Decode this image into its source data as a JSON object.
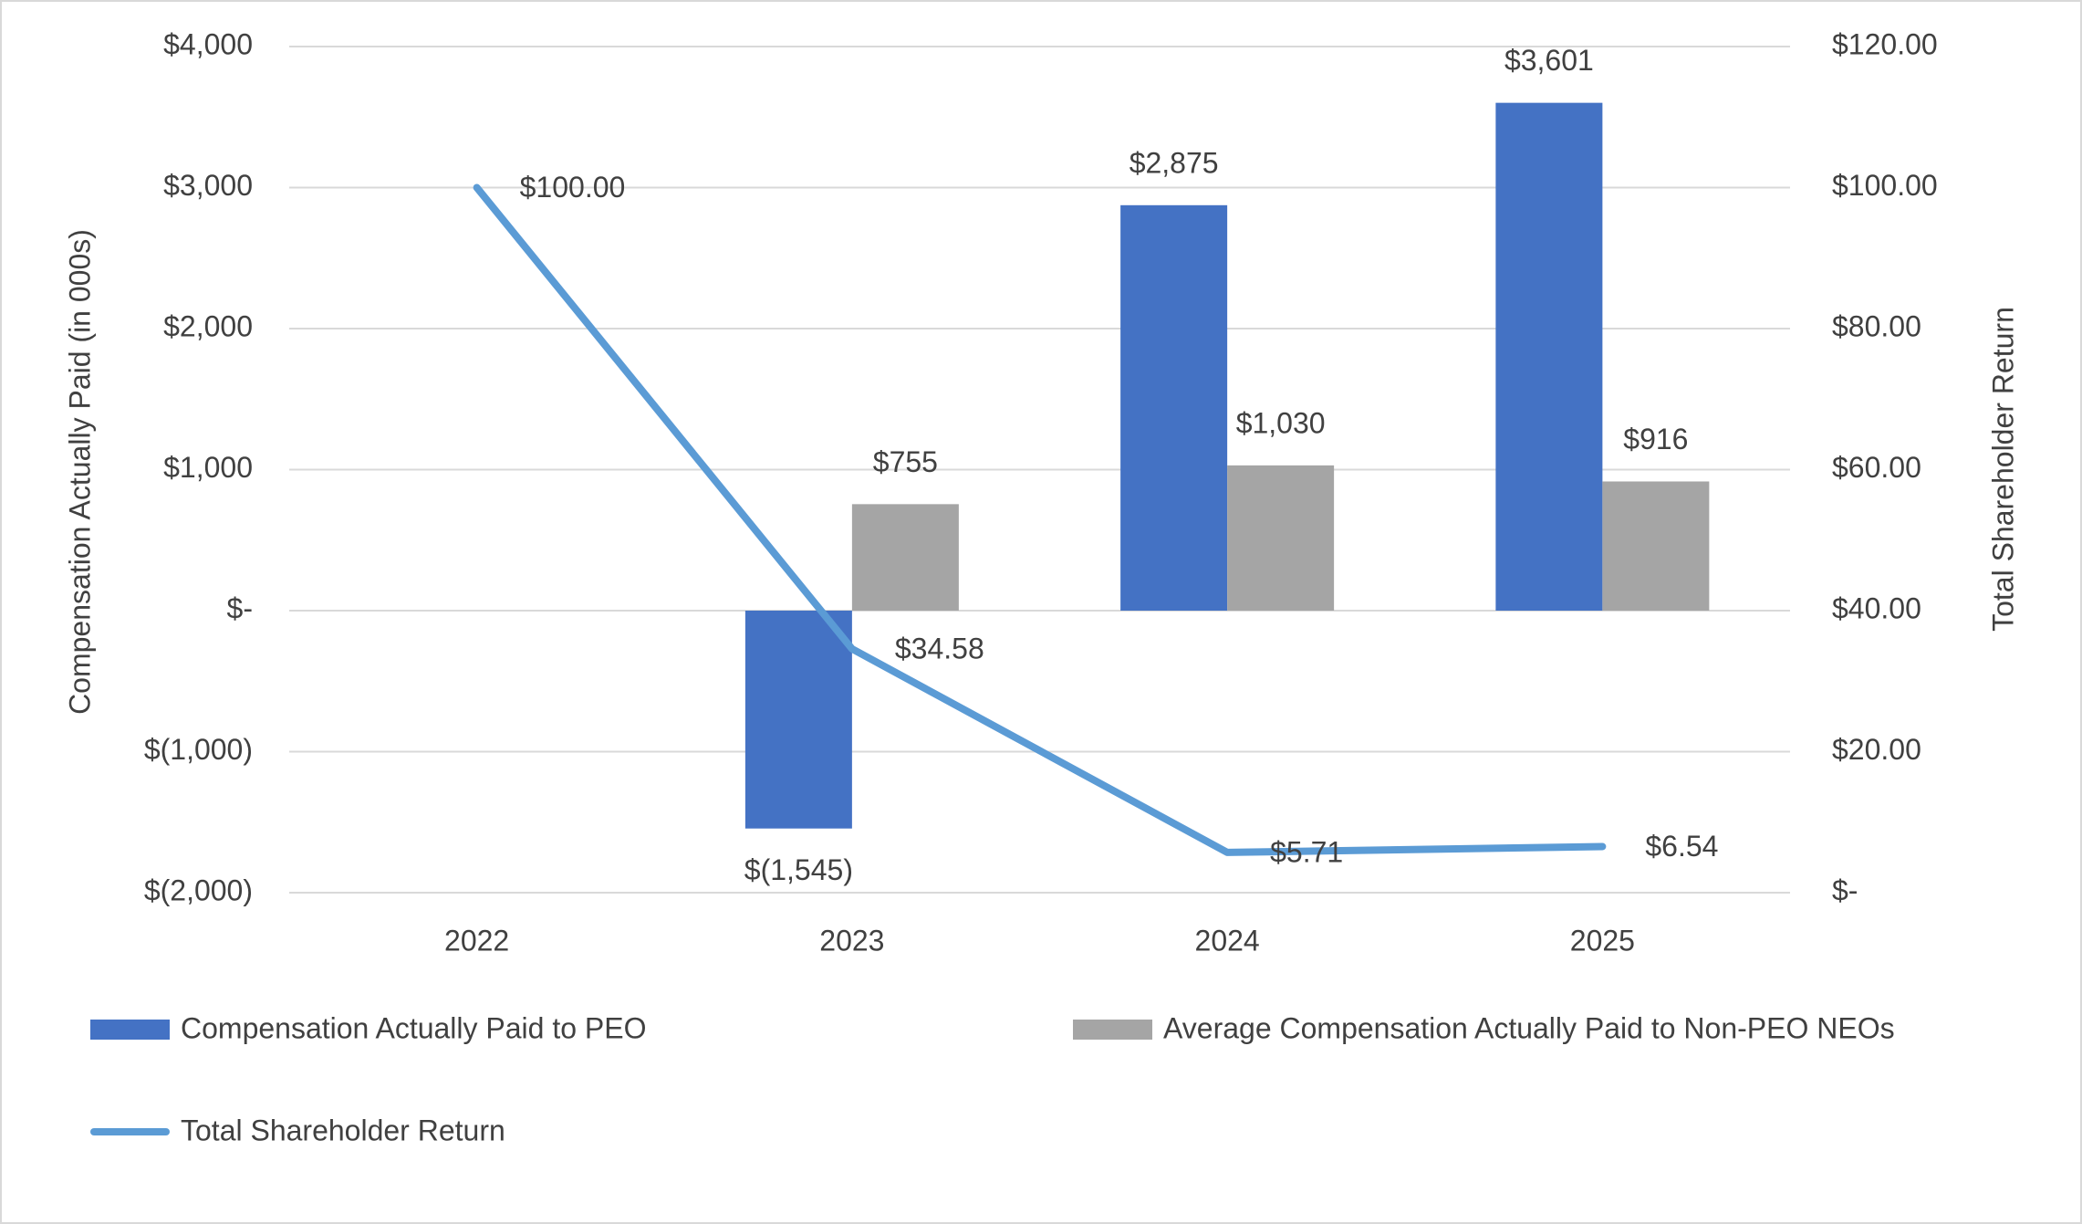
{
  "chart_data": {
    "type": "combo",
    "y_label": "Compensation Actually Paid (in 000s)",
    "y2_label": "Total Shareholder Return",
    "categories": [
      "2022",
      "2023",
      "2024",
      "2025"
    ],
    "series": [
      {
        "name": "Compensation Actually Paid to PEO",
        "type": "bar",
        "color": "#4472c4",
        "values": [
          null,
          -1545,
          2875,
          3601
        ],
        "value_labels": [
          null,
          "$(1,545)",
          "$2,875",
          "$3,601"
        ]
      },
      {
        "name": "Average Compensation Actually Paid to Non-PEO NEOs",
        "type": "bar",
        "color": "#a5a5a5",
        "values": [
          null,
          755,
          1030,
          916
        ],
        "value_labels": [
          null,
          "$755",
          "$1,030",
          "$916"
        ]
      },
      {
        "name": "Total Shareholder Return",
        "type": "line",
        "axis": "y2",
        "color": "#5b9bd5",
        "values": [
          100,
          34.58,
          5.71,
          6.54
        ],
        "value_labels": [
          "$100.00",
          "$34.58",
          "$5.71",
          "$6.54"
        ]
      }
    ],
    "ylim": [
      -2000,
      4000
    ],
    "yticks": [
      {
        "value": -2000,
        "label": "$(2,000)"
      },
      {
        "value": -1000,
        "label": "$(1,000)"
      },
      {
        "value": 0,
        "label": "$-"
      },
      {
        "value": 1000,
        "label": "$1,000"
      },
      {
        "value": 2000,
        "label": "$2,000"
      },
      {
        "value": 3000,
        "label": "$3,000"
      },
      {
        "value": 4000,
        "label": "$4,000"
      }
    ],
    "y2lim": [
      0,
      120
    ],
    "y2ticks": [
      {
        "value": 0,
        "label": "$-"
      },
      {
        "value": 20,
        "label": "$20.00"
      },
      {
        "value": 40,
        "label": "$40.00"
      },
      {
        "value": 60,
        "label": "$60.00"
      },
      {
        "value": 80,
        "label": "$80.00"
      },
      {
        "value": 100,
        "label": "$100.00"
      },
      {
        "value": 120,
        "label": "$120.00"
      }
    ],
    "grid": true,
    "legend": "bottom"
  }
}
